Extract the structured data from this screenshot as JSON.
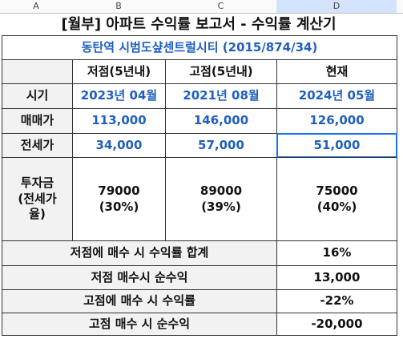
{
  "column_headers": [
    "A",
    "B",
    "C",
    "D"
  ],
  "title": "[월부] 아파트 수익률 보고서 - 수익률 계산기",
  "subtitle": "동탄역 시범도샾센트럴시티 (2015/874/34)",
  "table": {
    "header": [
      "저점(5년내)",
      "고점(5년내)",
      "현재"
    ],
    "rows": [
      {
        "label": "시기",
        "values": [
          "2023년 04월",
          "2021년 08월",
          "2024년 05월"
        ]
      },
      {
        "label": "매매가",
        "values": [
          "113,000",
          "146,000",
          "126,000"
        ]
      },
      {
        "label": "전세가",
        "values": [
          "34,000",
          "57,000",
          "51,000"
        ]
      },
      {
        "label": "투자금\n(전세가\n율)",
        "values": [
          "79000\n(30%)",
          "89000\n(39%)",
          "75000\n(40%)"
        ]
      }
    ],
    "summary": [
      {
        "label": "저점에 매수 시 수익률 합계",
        "value": "16%"
      },
      {
        "label": "저점 매수시 순수익",
        "value": "13,000"
      },
      {
        "label": "고점에 매수 시 수익률",
        "value": "-22%"
      },
      {
        "label": "고점 매수 시 순수익",
        "value": "-20,000"
      }
    ]
  }
}
